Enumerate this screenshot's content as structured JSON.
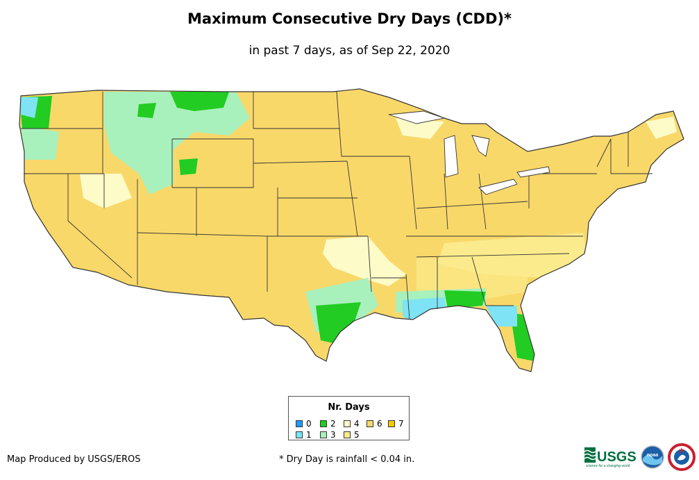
{
  "header": {
    "title": "Maximum Consecutive Dry Days (CDD)*",
    "subtitle": "in past 7 days, as of Sep 22, 2020"
  },
  "legend": {
    "title": "Nr. Days",
    "items": [
      {
        "label": "0",
        "color": "#1e9bff"
      },
      {
        "label": "1",
        "color": "#7ee3f5"
      },
      {
        "label": "2",
        "color": "#22cc22"
      },
      {
        "label": "3",
        "color": "#a8f0bc"
      },
      {
        "label": "4",
        "color": "#fdfbc8"
      },
      {
        "label": "5",
        "color": "#fbeb8c"
      },
      {
        "label": "6",
        "color": "#f9d86a"
      },
      {
        "label": "7",
        "color": "#f5c800"
      }
    ]
  },
  "footer": {
    "credit": "Map Produced by USGS/EROS",
    "footnote": "* Dry Day is rainfall < 0.04 in."
  },
  "logos": {
    "usgs": {
      "name": "usgs-logo",
      "text": "USGS",
      "tagline": "science for a changing world"
    },
    "noaa": {
      "name": "noaa-logo",
      "text": "noaa"
    },
    "nws": {
      "name": "nws-logo"
    }
  },
  "map": {
    "name": "conus-cdd-map",
    "dominant_class": "6",
    "region_classes": [
      {
        "region": "Pacific Northwest coast",
        "class": "1"
      },
      {
        "region": "Northern Rockies",
        "class": "3"
      },
      {
        "region": "Southeast Texas coast",
        "class": "2"
      },
      {
        "region": "Louisiana coast",
        "class": "1"
      },
      {
        "region": "South Florida",
        "class": "2"
      },
      {
        "region": "Oklahoma / Arkansas",
        "class": "4"
      }
    ]
  }
}
